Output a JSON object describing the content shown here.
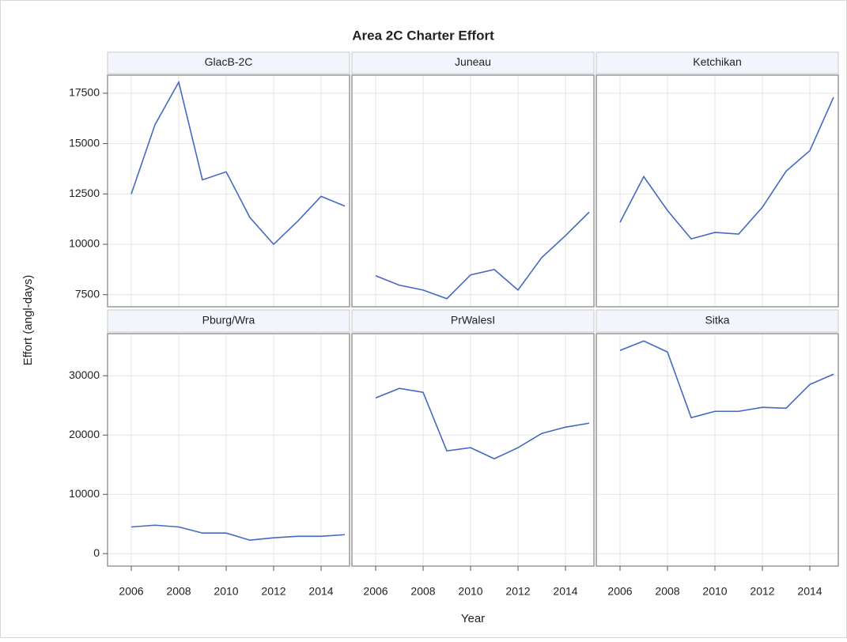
{
  "chart_data": {
    "type": "line",
    "title": "Area 2C Charter Effort",
    "xlabel": "Year",
    "ylabel": "Effort (angl-days)",
    "x": [
      2006,
      2007,
      2008,
      2009,
      2010,
      2011,
      2012,
      2013,
      2014,
      2015
    ],
    "xlim": [
      2005,
      2015.2
    ],
    "xticks": [
      2006,
      2008,
      2010,
      2012,
      2014
    ],
    "color": "#4568c0",
    "grid": true,
    "rows": [
      {
        "ylim": [
          6900,
          18400
        ],
        "yticks": [
          7500,
          10000,
          12500,
          15000,
          17500
        ],
        "panels": [
          {
            "title": "GlacB-2C",
            "values": [
              12500,
              15940,
              18050,
              13200,
              13600,
              11330,
              10000,
              11130,
              12380,
              11900
            ]
          },
          {
            "title": "Juneau",
            "values": [
              8440,
              7970,
              7730,
              7300,
              8480,
              8750,
              7730,
              9340,
              10430,
              11600
            ]
          },
          {
            "title": "Ketchikan",
            "values": [
              11090,
              13360,
              11680,
              10270,
              10590,
              10510,
              11840,
              13630,
              14650,
              17300
            ]
          }
        ]
      },
      {
        "ylim": [
          -2100,
          37100
        ],
        "yticks": [
          0,
          10000,
          20000,
          30000
        ],
        "panels": [
          {
            "title": "Pburg/Wra",
            "values": [
              4500,
              4800,
              4500,
              3470,
              3470,
              2270,
              2670,
              2930,
              2930,
              3200
            ]
          },
          {
            "title": "PrWalesI",
            "values": [
              26270,
              27870,
              27200,
              17330,
              17870,
              16000,
              17870,
              20270,
              21330,
              22000
            ]
          },
          {
            "title": "Sitka",
            "values": [
              34270,
              35870,
              34000,
              22930,
              24000,
              24000,
              24670,
              24530,
              28530,
              30270
            ]
          }
        ]
      }
    ]
  }
}
